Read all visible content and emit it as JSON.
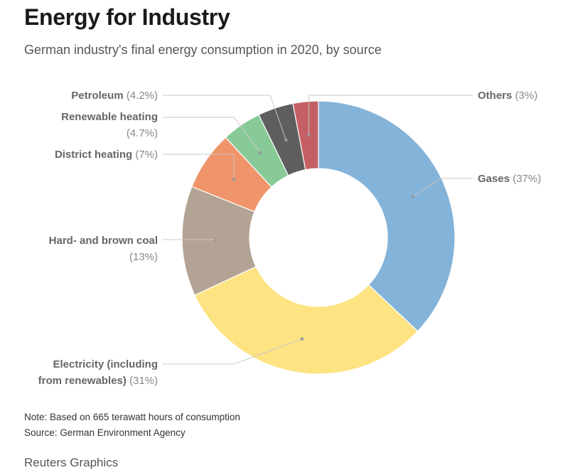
{
  "header": {
    "title": "Energy for Industry",
    "subtitle": "German industry's final energy consumption in 2020, by source"
  },
  "chart_data": {
    "type": "pie",
    "donut": true,
    "unit": "%",
    "slices": [
      {
        "label": "Gases",
        "pct_text": "(37%)",
        "value": 37,
        "color": "#84b3d9"
      },
      {
        "label": "Electricity (including from renewables)",
        "pct_text": "(31%)",
        "value": 31,
        "color": "#fde381"
      },
      {
        "label": "Hard- and brown coal",
        "pct_text": "(13%)",
        "value": 13,
        "color": "#b3a395"
      },
      {
        "label": "District heating",
        "pct_text": "(7%)",
        "value": 7,
        "color": "#f0956b"
      },
      {
        "label": "Renewable heating",
        "pct_text": "(4.7%)",
        "value": 4.7,
        "color": "#87ca98"
      },
      {
        "label": "Petroleum",
        "pct_text": "(4.2%)",
        "value": 4.2,
        "color": "#5e5e5e"
      },
      {
        "label": "Others",
        "pct_text": "(3%)",
        "value": 3,
        "color": "#c46063"
      }
    ]
  },
  "footer": {
    "note": "Note: Based on 665 terawatt hours of consumption",
    "source": "Source: German Environment Agency",
    "credit": "Reuters Graphics"
  }
}
